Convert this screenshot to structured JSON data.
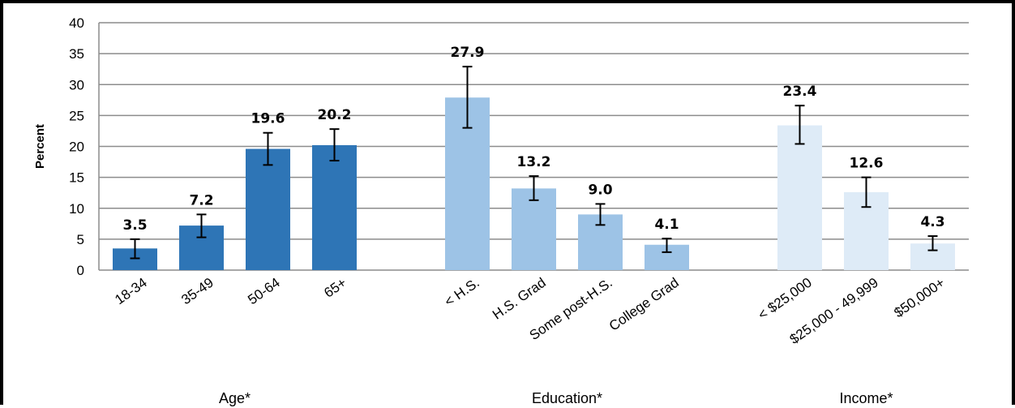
{
  "chart_data": {
    "type": "bar",
    "ylabel": "Percent",
    "ylim": [
      0,
      40
    ],
    "yticks": [
      0,
      5,
      10,
      15,
      20,
      25,
      30,
      35,
      40
    ],
    "grid": true,
    "error_bars": true,
    "groups": [
      {
        "name": "Age*",
        "color": "#2e75b6",
        "categories": [
          "18-34",
          "35-49",
          "50-64",
          "65+"
        ],
        "values": [
          3.5,
          7.2,
          19.6,
          20.2
        ],
        "value_labels": [
          "3.5",
          "7.2",
          "19.6",
          "20.2"
        ],
        "error_low": [
          1.9,
          5.3,
          17.0,
          17.7
        ],
        "error_high": [
          5.0,
          9.0,
          22.2,
          22.8
        ]
      },
      {
        "name": "Education*",
        "color": "#9dc3e6",
        "categories": [
          "< H.S.",
          "H.S. Grad",
          "Some post-H.S.",
          "College Grad"
        ],
        "values": [
          27.9,
          13.2,
          9.0,
          4.1
        ],
        "value_labels": [
          "27.9",
          "13.2",
          "9.0",
          "4.1"
        ],
        "error_low": [
          23.0,
          11.3,
          7.3,
          2.9
        ],
        "error_high": [
          32.9,
          15.2,
          10.7,
          5.1
        ]
      },
      {
        "name": "Income*",
        "color": "#deebf7",
        "categories": [
          "< $25,000",
          "$25,000 - 49,999",
          "$50,000+"
        ],
        "values": [
          23.4,
          12.6,
          4.3
        ],
        "value_labels": [
          "23.4",
          "12.6",
          "4.3"
        ],
        "error_low": [
          20.4,
          10.2,
          3.2
        ],
        "error_high": [
          26.6,
          15.0,
          5.5
        ]
      }
    ]
  }
}
